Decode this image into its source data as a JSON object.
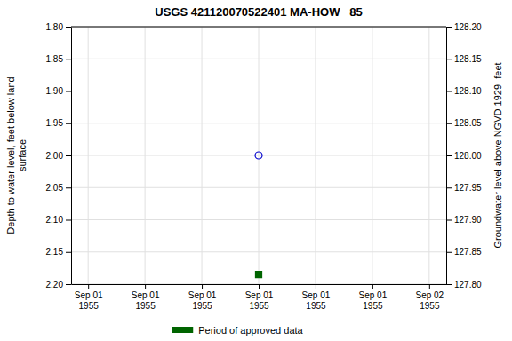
{
  "chart_data": {
    "type": "scatter",
    "title": "USGS 421120070522401 MA-HOW   85",
    "y_label": "Depth to water level, feet below land\n surface",
    "y2_label": "Groundwater level above NGVD 1929, feet",
    "categories": [
      "Sep 01\n1955",
      "Sep 01\n1955",
      "Sep 01\n1955",
      "Sep 01\n1955",
      "Sep 01\n1955",
      "Sep 01\n1955",
      "Sep 02\n1955"
    ],
    "series": [
      {
        "color": "#0000cc",
        "marker": "open-circle",
        "values": [
          null,
          null,
          null,
          2.0,
          null,
          null,
          null
        ]
      },
      {
        "name": "Period of approved data",
        "color": "#006400",
        "marker": "square",
        "values": [
          null,
          null,
          null,
          2.185,
          null,
          null,
          null
        ]
      }
    ],
    "ylim": [
      2.2,
      1.8
    ],
    "yticks": [
      {
        "value": 1.8,
        "label": "1.80"
      },
      1.85,
      {
        "value": 1.9,
        "label": "1.90"
      },
      1.95,
      {
        "value": 2.0,
        "label": "2.00"
      },
      2.05,
      {
        "value": 2.1,
        "label": "2.10"
      },
      2.15,
      {
        "value": 2.2,
        "label": "2.20"
      }
    ],
    "y2lim": [
      127.8,
      128.2
    ],
    "y2ticks": [
      {
        "value": 128.2,
        "label": "128.20"
      },
      128.15,
      {
        "value": 128.1,
        "label": "128.10"
      },
      128.05,
      {
        "value": 128.0,
        "label": "128.00"
      },
      127.95,
      {
        "value": 127.9,
        "label": "127.90"
      },
      127.85,
      {
        "value": 127.8,
        "label": "127.80"
      }
    ],
    "grid": true,
    "legend": "bottom"
  }
}
